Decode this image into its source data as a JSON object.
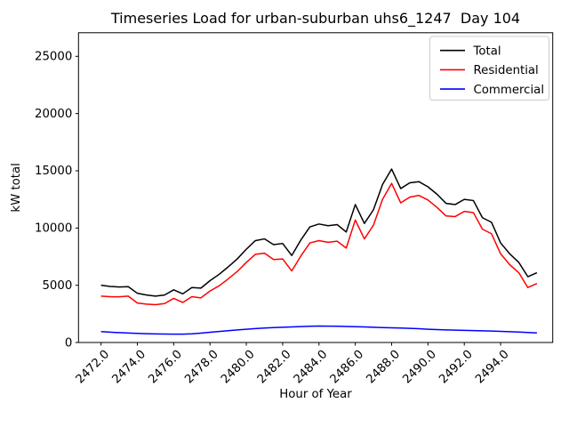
{
  "window": {
    "background": "#ffffff"
  },
  "chart": {
    "title": "Timeseries Load for urban-suburban uhs6_1247  Day 104",
    "xlabel": "Hour of Year",
    "ylabel": "kW total"
  },
  "legend": {
    "position": "upper right",
    "entries": [
      {
        "label": "Total",
        "color": "#000000"
      },
      {
        "label": "Residential",
        "color": "#ff0000"
      },
      {
        "label": "Commercial",
        "color": "#0000ff"
      }
    ]
  },
  "chart_data": {
    "type": "line",
    "title": "Timeseries Load for urban-suburban uhs6_1247  Day 104",
    "xlabel": "Hour of Year",
    "ylabel": "kW total",
    "grid": false,
    "legend_position": "upper right",
    "xlim": [
      2470.76,
      2496.87
    ],
    "ylim": [
      0,
      27060
    ],
    "x_ticks": [
      2472,
      2474,
      2476,
      2478,
      2480,
      2482,
      2484,
      2486,
      2488,
      2490,
      2492,
      2494
    ],
    "x_tick_labels": [
      "2472.0",
      "2474.0",
      "2476.0",
      "2478.0",
      "2480.0",
      "2482.0",
      "2484.0",
      "2486.0",
      "2488.0",
      "2490.0",
      "2492.0",
      "2494.0"
    ],
    "y_ticks": [
      0,
      5000,
      10000,
      15000,
      20000,
      25000
    ],
    "y_tick_labels": [
      "0",
      "5000",
      "10000",
      "15000",
      "20000",
      "25000"
    ],
    "x": [
      2472.0,
      2472.5,
      2473.0,
      2473.5,
      2474.0,
      2474.5,
      2475.0,
      2475.5,
      2476.0,
      2476.5,
      2477.0,
      2477.5,
      2478.0,
      2478.5,
      2479.0,
      2479.5,
      2480.0,
      2480.5,
      2481.0,
      2481.5,
      2482.0,
      2482.5,
      2483.0,
      2483.5,
      2484.0,
      2484.5,
      2485.0,
      2485.5,
      2486.0,
      2486.5,
      2487.0,
      2487.5,
      2488.0,
      2488.5,
      2489.0,
      2489.5,
      2490.0,
      2490.5,
      2491.0,
      2491.5,
      2492.0,
      2492.5,
      2493.0,
      2493.5,
      2494.0,
      2494.5,
      2495.0,
      2495.5,
      2496.0
    ],
    "series": [
      {
        "name": "Total",
        "color": "#000000",
        "values": [
          5000,
          4900,
          4850,
          4880,
          4300,
          4150,
          4050,
          4150,
          4600,
          4250,
          4800,
          4750,
          5400,
          5950,
          6600,
          7300,
          8150,
          8900,
          9050,
          8550,
          8650,
          7600,
          8950,
          10100,
          10350,
          10200,
          10300,
          9650,
          12050,
          10400,
          11600,
          13800,
          15150,
          13450,
          13950,
          14050,
          13600,
          12950,
          12150,
          12050,
          12500,
          12400,
          10900,
          10500,
          8700,
          7750,
          7000,
          5750,
          6100
        ]
      },
      {
        "name": "Residential",
        "color": "#ff0000",
        "values": [
          4050,
          4000,
          3990,
          4050,
          3450,
          3350,
          3300,
          3400,
          3850,
          3500,
          4000,
          3900,
          4500,
          4950,
          5550,
          6200,
          7000,
          7700,
          7800,
          7250,
          7300,
          6250,
          7550,
          8700,
          8900,
          8750,
          8850,
          8250,
          10700,
          9050,
          10250,
          12500,
          13900,
          12200,
          12700,
          12850,
          12450,
          11800,
          11050,
          11000,
          11450,
          11350,
          9900,
          9500,
          7750,
          6800,
          6100,
          4800,
          5150
        ]
      },
      {
        "name": "Commercial",
        "color": "#0000ff",
        "values": [
          950,
          900,
          860,
          830,
          800,
          770,
          750,
          740,
          730,
          730,
          760,
          820,
          890,
          960,
          1030,
          1100,
          1160,
          1210,
          1260,
          1300,
          1330,
          1360,
          1390,
          1420,
          1440,
          1430,
          1420,
          1400,
          1380,
          1360,
          1330,
          1300,
          1280,
          1260,
          1230,
          1200,
          1160,
          1130,
          1100,
          1080,
          1060,
          1040,
          1020,
          1000,
          970,
          940,
          910,
          870,
          840
        ]
      }
    ]
  }
}
